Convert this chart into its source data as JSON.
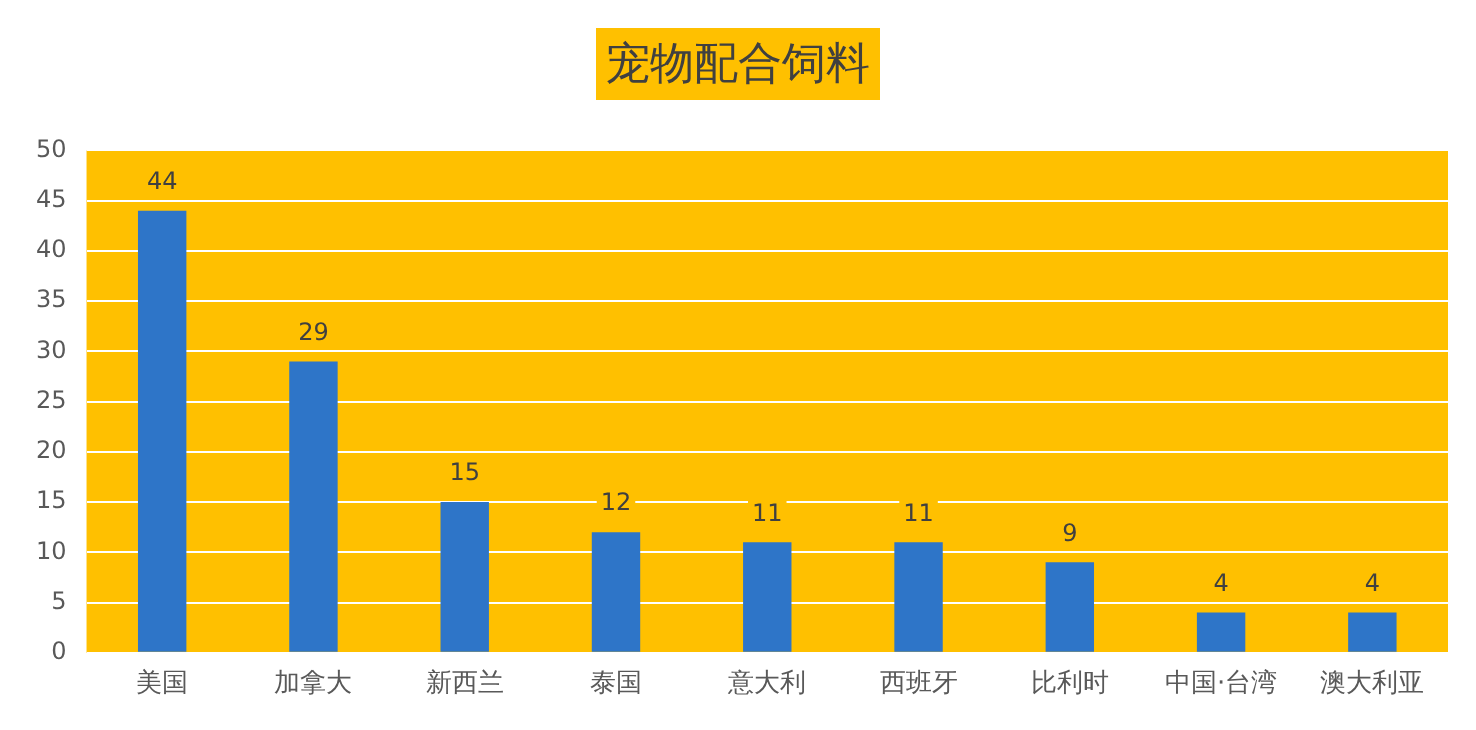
{
  "chart_data": {
    "type": "bar",
    "title": "宠物配合饲料",
    "categories": [
      "美国",
      "加拿大",
      "新西兰",
      "泰国",
      "意大利",
      "西班牙",
      "比利时",
      "中国·台湾",
      "澳大利亚"
    ],
    "series": [
      {
        "color": "#2e75c8",
        "values": [
          44,
          29,
          15,
          12,
          11,
          11,
          9,
          4,
          4
        ]
      }
    ],
    "ylim": [
      0,
      50
    ],
    "yticks": [
      0,
      5,
      10,
      15,
      20,
      25,
      30,
      35,
      40,
      45,
      50
    ],
    "grid": "y",
    "legend": false,
    "data_labels": true
  }
}
